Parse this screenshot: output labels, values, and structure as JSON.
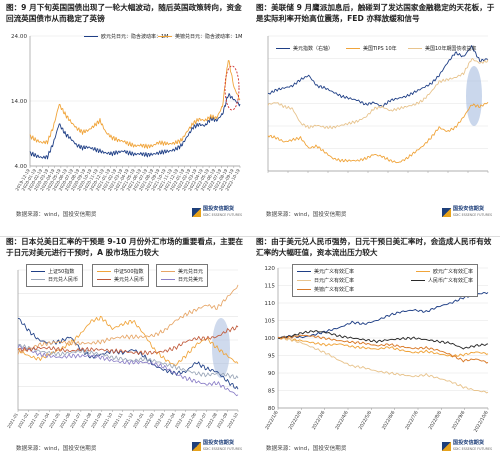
{
  "panels": [
    {
      "id": "p1",
      "caption": "图：9 月下旬英国国债出现了一轮大幅波动，随后英国政策转向，资金回流英国债市从而稳定了英镑",
      "source": "数据来源：wind，国投安信期货",
      "logo": {
        "name": "国投安信期货",
        "sub": "SDIC ESSENCE FUTURES"
      },
      "chart_data": {
        "type": "line",
        "title": "",
        "y_axes": [
          {
            "side": "left",
            "ylim": [
              4.0,
              24.0
            ],
            "ticks": [
              "4.00",
              "14.00",
              "24.00"
            ]
          }
        ],
        "x_ticks": [
          "2019-12-19",
          "2020-01-19",
          "2020-02-19",
          "2020-03-19",
          "2020-04-19",
          "2020-05-19",
          "2020-06-19",
          "2020-07-19",
          "2020-08-19",
          "2020-09-19",
          "2020-10-19",
          "2020-11-19",
          "2020-12-19",
          "2021-01-19",
          "2021-02-19",
          "2021-03-19",
          "2021-04-19",
          "2021-05-19",
          "2021-06-19",
          "2021-07-19",
          "2021-08-19",
          "2021-09-19",
          "2021-10-19",
          "2021-11-19",
          "2021-12-19",
          "2022-01-19",
          "2022-02-19",
          "2022-03-19",
          "2022-04-19",
          "2022-05-19",
          "2022-06-19",
          "2022-07-19",
          "2022-08-19",
          "2022-09-19",
          "2022-10-19"
        ],
        "series": [
          {
            "name": "欧元兑日元：隐含波动率：1M",
            "color": "#1f3f86",
            "values": [
              6.0,
              5.6,
              5.3,
              5.4,
              7.5,
              10.5,
              9.0,
              8.2,
              7.2,
              6.8,
              6.9,
              6.6,
              6.3,
              6.0,
              5.9,
              6.1,
              6.3,
              6.0,
              5.8,
              5.9,
              5.7,
              5.8,
              6.0,
              6.2,
              6.3,
              6.6,
              7.2,
              8.6,
              10.0,
              10.4,
              10.2,
              11.3,
              11.0,
              12.0,
              15.0,
              14.2,
              13.4
            ]
          },
          {
            "name": "英镑兑日元：隐含波动率：1M",
            "color": "#f0a43a",
            "values": [
              8.6,
              8.0,
              7.6,
              7.7,
              10.0,
              13.5,
              12.0,
              10.8,
              9.8,
              9.2,
              9.5,
              10.2,
              11.0,
              9.2,
              8.4,
              8.0,
              7.8,
              7.4,
              7.1,
              7.2,
              7.0,
              7.1,
              7.6,
              7.5,
              7.4,
              7.6,
              8.0,
              9.4,
              10.6,
              11.2,
              11.0,
              11.6,
              11.4,
              13.2,
              20.5,
              16.0,
              14.2
            ]
          }
        ],
        "annotation": "dashed-red-ellipse-highlight"
      }
    },
    {
      "id": "p2",
      "caption": "图：美联储 9 月鹰派加息后，触碰到了发达国家金融稳定的天花板，于是实际利率开始高位震荡，FED 亦释放缓和信号",
      "source": "数据来源：wind，国投安信期货",
      "logo": {
        "name": "国投安信期货",
        "sub": "SDIC ESSENCE FUTURES"
      },
      "chart_data": {
        "type": "line",
        "title": "",
        "y_axes": [
          {
            "side": "left",
            "ylim": [
              0,
              120
            ],
            "ticks": [
              "",
              "",
              "",
              "",
              "",
              "",
              ""
            ]
          },
          {
            "side": "right",
            "ylim": [
              -1.5,
              5.0
            ],
            "ticks": [
              "",
              "",
              "",
              "",
              "",
              "",
              ""
            ]
          }
        ],
        "x_ticks": [
          "",
          "",
          "",
          "",
          "",
          "",
          "",
          "",
          "",
          "",
          "",
          ""
        ],
        "series": [
          {
            "name": "美元指数（右轴）",
            "color": "#1f3f86",
            "axis": "right",
            "values": [
              2.2,
              2.4,
              2.5,
              2.6,
              2.9,
              3.1,
              2.6,
              2.5,
              2.3,
              2.1,
              2.0,
              1.9,
              1.7,
              1.8,
              1.6,
              1.9,
              2.0,
              2.1,
              2.3,
              2.5,
              2.7,
              3.1,
              3.7,
              4.2,
              4.0,
              4.5,
              3.8,
              3.9
            ]
          },
          {
            "name": "美国TIPS 10年",
            "color": "#f0a43a",
            "axis": "right",
            "values": [
              0.2,
              0.1,
              -0.1,
              0.0,
              0.1,
              -0.4,
              -0.3,
              -0.6,
              -0.9,
              -1.0,
              -1.0,
              -1.0,
              -0.9,
              -0.7,
              -0.8,
              -1.0,
              -1.1,
              -0.9,
              -0.6,
              -0.3,
              0.1,
              0.6,
              0.4,
              0.6,
              1.1,
              1.7,
              1.6,
              1.8
            ]
          },
          {
            "name": "美国10年期国债收益率",
            "color": "#e8c48e",
            "axis": "right",
            "values": [
              1.7,
              1.8,
              1.6,
              1.5,
              0.8,
              0.6,
              0.7,
              0.6,
              0.6,
              0.7,
              0.8,
              0.9,
              1.1,
              1.5,
              1.6,
              1.4,
              1.5,
              1.6,
              1.7,
              1.9,
              2.3,
              2.8,
              2.9,
              3.0,
              3.2,
              3.9,
              3.7,
              3.8
            ]
          }
        ],
        "annotation": "shaded-blue-ellipse-highlight"
      }
    },
    {
      "id": "p3",
      "caption": "图：日本兑美日汇率的干预是 9-10 月份外汇市场的重要看点，主要在于日元对美元进行干预时，A 股市场压力较大",
      "source": "数据来源：wind，国投安信期货",
      "logo": {
        "name": "国投安信期货",
        "sub": "SDIC ESSENCE FUTURES"
      },
      "chart_data": {
        "type": "line",
        "title": "",
        "x_ticks": [
          "2021-01",
          "2021-02",
          "2021-03",
          "2021-04",
          "2021-05",
          "2021-06",
          "2021-07",
          "2021-08",
          "2021-09",
          "2021-10",
          "2021-11",
          "2021-12",
          "2022-01",
          "2022-02",
          "2022-03",
          "2022-04",
          "2022-05",
          "2022-06",
          "2022-07",
          "2022-08",
          "2022-09",
          "2022-10"
        ],
        "series": [
          {
            "name": "上证50指数",
            "color": "#1f3f86",
            "values": [
              120,
              112,
              106,
              104,
              105,
              108,
              100,
              95,
              97,
              99,
              98,
              100,
              96,
              90,
              87,
              85,
              86,
              92,
              88,
              86,
              80,
              75
            ]
          },
          {
            "name": "中证500指数",
            "color": "#f0a43a",
            "values": [
              100,
              96,
              94,
              97,
              100,
              104,
              110,
              118,
              120,
              113,
              116,
              118,
              110,
              100,
              94,
              90,
              96,
              103,
              107,
              101,
              96,
              91
            ]
          },
          {
            "name": "美元兑日元",
            "color": "#e6a566",
            "values": [
              98,
              100,
              103,
              104,
              105,
              104,
              104,
              104,
              105,
              107,
              108,
              108,
              108,
              109,
              112,
              118,
              122,
              125,
              128,
              126,
              133,
              140
            ]
          },
          {
            "name": "日元兑美元",
            "color": "#8b7fc7",
            "values": [
              102,
              100,
              97,
              96,
              95,
              96,
              96,
              96,
              95,
              93,
              92,
              92,
              92,
              91,
              89,
              85,
              82,
              80,
              78,
              79,
              75,
              71
            ]
          },
          {
            "name": "日元兑人民币",
            "color": "#9aa6b8",
            "values": [
              103,
              101,
              99,
              98,
              97,
              98,
              99,
              98,
              97,
              95,
              94,
              93,
              94,
              93,
              91,
              89,
              87,
              85,
              84,
              85,
              84,
              82
            ]
          },
          {
            "name": "美元兑人民币",
            "color": "#c05a3a",
            "values": [
              100,
              100,
              101,
              101,
              100,
              99,
              100,
              100,
              100,
              99,
              99,
              98,
              98,
              98,
              99,
              101,
              105,
              107,
              107,
              108,
              112,
              114
            ]
          }
        ],
        "annotation": "shaded-blue-ellipse-highlight"
      }
    },
    {
      "id": "p4",
      "caption": "图：由于美元兑人民币强势，日元干预日美汇率时，会造成人民币有效汇率的大幅旺值，资本流出压力较大",
      "source": "数据来源：wind，国投安信期货",
      "logo": {
        "name": "国投安信期货",
        "sub": "SDIC ESSENCE FUTURES"
      },
      "chart_data": {
        "type": "line",
        "title": "",
        "y_axes": [
          {
            "side": "left",
            "ylim": [
              80,
              120
            ],
            "ticks": [
              "80",
              "85",
              "90",
              "95",
              "100",
              "105",
              "110",
              "115",
              "120"
            ]
          }
        ],
        "x_ticks": [
          "2022/1/6",
          "2022/2/6",
          "2022/3/6",
          "2022/4/6",
          "2022/5/6",
          "2022/6/6",
          "2022/7/6",
          "2022/8/6",
          "2022/9/6",
          "2022/10/6"
        ],
        "series": [
          {
            "name": "美元广义有效汇率",
            "color": "#1f3f86",
            "values": [
              100,
              100.5,
              100.2,
              101,
              102,
              103,
              104.5,
              104,
              105,
              106.5,
              107.5,
              108,
              107.5,
              109,
              110,
              111.5,
              112.5,
              113
            ]
          },
          {
            "name": "欧元广义有效汇率",
            "color": "#f0a43a",
            "values": [
              100,
              99.6,
              99.2,
              98.5,
              98,
              98.3,
              97.5,
              97.2,
              96.8,
              97.4,
              96.5,
              95.8,
              96.2,
              95.5,
              94.8,
              95.2,
              96,
              95.5
            ]
          },
          {
            "name": "日元广义有效汇率",
            "color": "#e8c48e",
            "values": [
              100,
              99.5,
              98.5,
              97,
              95.5,
              93.5,
              92,
              91.5,
              90.5,
              90,
              89.5,
              89,
              89.5,
              88.5,
              87.5,
              86,
              85,
              84.5
            ]
          },
          {
            "name": "人民币广义有效汇率",
            "color": "#2a2a2a",
            "values": [
              100,
              100.5,
              101.5,
              102,
              101.5,
              100.5,
              100,
              99.5,
              99,
              99.5,
              99.8,
              100,
              99.5,
              99,
              98.5,
              97,
              97.8,
              98.2
            ]
          },
          {
            "name": "英镑广义有效汇率",
            "color": "#d97a28",
            "values": [
              100,
              100.2,
              100.8,
              100.4,
              99.8,
              99.2,
              98.8,
              98.5,
              97.8,
              98.2,
              97.5,
              97,
              97.2,
              96.5,
              95.2,
              93.5,
              94,
              93
            ]
          }
        ]
      }
    }
  ]
}
